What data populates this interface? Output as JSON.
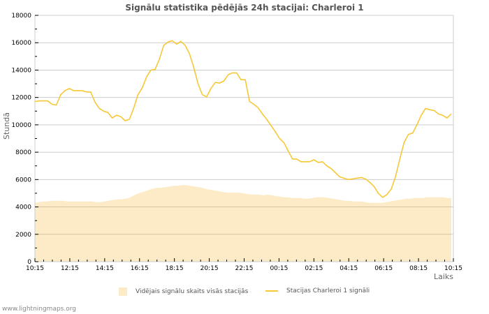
{
  "chart_data": {
    "type": "line",
    "title": "Signālu statistika pēdējās 24h stacijai: Charleroi 1",
    "xlabel": "Laiks",
    "ylabel": "Stundā",
    "ylim": [
      0,
      18000
    ],
    "yticks": [
      0,
      2000,
      4000,
      6000,
      8000,
      10000,
      12000,
      14000,
      16000,
      18000
    ],
    "xticks": [
      "10:15",
      "12:15",
      "14:15",
      "16:15",
      "18:15",
      "20:15",
      "22:15",
      "00:15",
      "02:15",
      "04:15",
      "06:15",
      "08:15",
      "10:15"
    ],
    "grid": true,
    "legend_position": "bottom",
    "series": [
      {
        "name": "Vidējais signālu skaits visās stacijās",
        "type": "area",
        "color": "#fdebc8",
        "values": [
          4300,
          4350,
          4400,
          4400,
          4450,
          4450,
          4450,
          4450,
          4400,
          4400,
          4400,
          4400,
          4400,
          4400,
          4400,
          4350,
          4350,
          4400,
          4450,
          4500,
          4550,
          4550,
          4600,
          4650,
          4800,
          4950,
          5050,
          5150,
          5250,
          5350,
          5400,
          5400,
          5450,
          5500,
          5550,
          5550,
          5600,
          5600,
          5550,
          5500,
          5450,
          5400,
          5300,
          5250,
          5200,
          5150,
          5100,
          5050,
          5050,
          5050,
          5050,
          5000,
          4950,
          4900,
          4900,
          4900,
          4850,
          4900,
          4850,
          4800,
          4750,
          4700,
          4700,
          4650,
          4650,
          4650,
          4600,
          4600,
          4650,
          4700,
          4700,
          4700,
          4650,
          4600,
          4550,
          4500,
          4450,
          4450,
          4400,
          4400,
          4400,
          4350,
          4300,
          4300,
          4300,
          4300,
          4350,
          4400,
          4450,
          4500,
          4550,
          4600,
          4600,
          4650,
          4650,
          4650,
          4700,
          4700,
          4700,
          4700,
          4700,
          4650,
          4650
        ]
      },
      {
        "name": "Stacijas Charleroi 1 signāli",
        "type": "line",
        "color": "#f7c836",
        "values": [
          11700,
          11750,
          11750,
          11750,
          11500,
          11450,
          12200,
          12500,
          12650,
          12500,
          12500,
          12500,
          12400,
          12400,
          11650,
          11200,
          11000,
          10900,
          10500,
          10700,
          10600,
          10300,
          10400,
          11200,
          12200,
          12700,
          13500,
          14000,
          14050,
          14800,
          15800,
          16050,
          16150,
          15900,
          16100,
          15800,
          15200,
          14200,
          13000,
          12200,
          12050,
          12650,
          13100,
          13050,
          13200,
          13650,
          13800,
          13800,
          13300,
          13300,
          11700,
          11500,
          11250,
          10800,
          10400,
          9950,
          9500,
          9000,
          8700,
          8100,
          7500,
          7500,
          7300,
          7300,
          7300,
          7450,
          7250,
          7300,
          7000,
          6800,
          6500,
          6200,
          6100,
          6000,
          6050,
          6100,
          6150,
          6050,
          5800,
          5500,
          5000,
          4700,
          4900,
          5300,
          6200,
          7500,
          8700,
          9300,
          9400,
          10000,
          10700,
          11200,
          11100,
          11050,
          10800,
          10700,
          10500,
          10800
        ]
      }
    ]
  },
  "legend": {
    "area_label": "Vidējais signālu skaits visās stacijās",
    "line_label": "Stacijas Charleroi 1 signāli"
  },
  "footer": "www.lightningmaps.org"
}
